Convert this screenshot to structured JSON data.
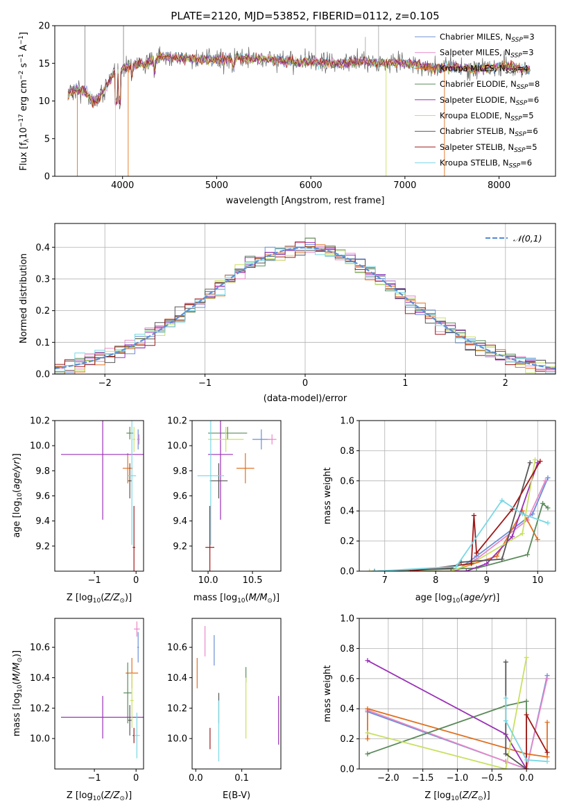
{
  "figure_title": "PLATE=2120, MJD=53852, FIBERID=0112, z=0.105",
  "colors": {
    "Chabrier MILES": "#6b8fd6",
    "Salpeter MILES": "#e888c8",
    "Kroupa MILES": "#e07020",
    "Chabrier ELODIE": "#5a8a5a",
    "Salpeter ELODIE": "#9a30b8",
    "Kroupa ELODIE": "#c8e060",
    "Chabrier STELIB": "#555555",
    "Salpeter STELIB": "#a01818",
    "Kroupa STELIB": "#78d8e4",
    "normal_curve": "#5b8fd6"
  },
  "chart_data": [
    {
      "id": "spectrum",
      "type": "line",
      "title": "PLATE=2120, MJD=53852, FIBERID=0112, z=0.105",
      "xlabel": "wavelength [Angstrom, rest frame]",
      "ylabel": "Flux [f_λ10^-17 erg cm^-2 s^-1 A^-1]",
      "xlim": [
        3280,
        8600
      ],
      "ylim": [
        0,
        20
      ],
      "xticks": [
        4000,
        5000,
        6000,
        7000,
        8000
      ],
      "yticks": [
        0,
        5,
        10,
        15,
        20
      ],
      "grid": false,
      "legend_position": "top-right",
      "legend": [
        {
          "base": "Chabrier MILES",
          "n": "3"
        },
        {
          "base": "Salpeter MILES",
          "n": "3"
        },
        {
          "base": "Kroupa MILES",
          "n": "4"
        },
        {
          "base": "Chabrier ELODIE",
          "n": "8"
        },
        {
          "base": "Salpeter ELODIE",
          "n": "6"
        },
        {
          "base": "Kroupa ELODIE",
          "n": "5"
        },
        {
          "base": "Chabrier STELIB",
          "n": "6"
        },
        {
          "base": "Salpeter STELIB",
          "n": "5"
        },
        {
          "base": "Kroupa STELIB",
          "n": "6"
        }
      ],
      "continuum": [
        [
          3420,
          11
        ],
        [
          3520,
          11.5
        ],
        [
          3600,
          11.3
        ],
        [
          3700,
          9.8
        ],
        [
          3780,
          11
        ],
        [
          3900,
          13.5
        ],
        [
          3980,
          14.2
        ],
        [
          4050,
          14.5
        ],
        [
          4150,
          15
        ],
        [
          4250,
          14.8
        ],
        [
          4400,
          15.8
        ],
        [
          4600,
          15.8
        ],
        [
          4800,
          15.5
        ],
        [
          5000,
          15.5
        ],
        [
          5200,
          15.7
        ],
        [
          5400,
          15.6
        ],
        [
          5600,
          15.5
        ],
        [
          5800,
          15.2
        ],
        [
          6000,
          15.2
        ],
        [
          6200,
          15
        ],
        [
          6400,
          15
        ],
        [
          6563,
          15.4
        ],
        [
          6700,
          15
        ],
        [
          6900,
          15.1
        ],
        [
          7100,
          14.9
        ],
        [
          7300,
          14.3
        ],
        [
          7500,
          14.6
        ],
        [
          7700,
          14.2
        ],
        [
          7900,
          14.4
        ],
        [
          8100,
          14.7
        ],
        [
          8300,
          14.1
        ]
      ]
    },
    {
      "id": "residuals",
      "type": "histogram",
      "xlabel": "(data-model)/error",
      "ylabel": "Normed distribution",
      "xlim": [
        -2.5,
        2.5
      ],
      "ylim": [
        0,
        0.475
      ],
      "xticks": [
        -2,
        -1,
        0,
        1,
        2
      ],
      "yticks": [
        0.0,
        0.1,
        0.2,
        0.3,
        0.4
      ],
      "grid": true,
      "bin_width": 0.1,
      "legend": "𝒩(0,1)",
      "legend_position": "top-right",
      "series_colors": [
        "Chabrier MILES",
        "Salpeter MILES",
        "Kroupa MILES",
        "Chabrier ELODIE",
        "Salpeter ELODIE",
        "Kroupa ELODIE",
        "Chabrier STELIB",
        "Salpeter STELIB",
        "Kroupa STELIB"
      ]
    },
    {
      "id": "age_vs_Z",
      "type": "errorbar",
      "xlabel": "Z [log10(Z/Z⊙)]",
      "ylabel": "age  [log10(age/yr)]",
      "xlim": [
        -1.95,
        0.18
      ],
      "ylim": [
        9.0,
        10.2
      ],
      "xticks": [
        -1,
        0
      ],
      "yticks": [
        9.2,
        9.4,
        9.6,
        9.8,
        10.0,
        10.2
      ],
      "points": [
        {
          "series": "Chabrier MILES",
          "x": 0.05,
          "xerr": 0.02,
          "y": 10.05,
          "yerr": 0.08
        },
        {
          "series": "Salpeter MILES",
          "x": 0.07,
          "xerr": 0.02,
          "y": 10.05,
          "yerr": 0.04
        },
        {
          "series": "Kroupa MILES",
          "x": -0.2,
          "xerr": 0.12,
          "y": 9.82,
          "yerr": 0.12
        },
        {
          "series": "Chabrier ELODIE",
          "x": -0.15,
          "xerr": 0.08,
          "y": 10.1,
          "yerr": 0.05
        },
        {
          "series": "Salpeter ELODIE",
          "x": -0.8,
          "xerr": 1.0,
          "y": 9.93,
          "yerr": 0.52
        },
        {
          "series": "Kroupa ELODIE",
          "x": -0.05,
          "xerr": 0.03,
          "y": 10.05,
          "yerr": 0.1
        },
        {
          "series": "Chabrier STELIB",
          "x": -0.15,
          "xerr": 0.04,
          "y": 9.72,
          "yerr": 0.14
        },
        {
          "series": "Salpeter STELIB",
          "x": -0.05,
          "xerr": 0.03,
          "y": 9.19,
          "yerr": 0.33
        },
        {
          "series": "Kroupa STELIB",
          "x": -0.1,
          "xerr": 0.1,
          "y": 9.76,
          "yerr": 0.55
        }
      ]
    },
    {
      "id": "age_vs_mass",
      "type": "errorbar",
      "xlabel": "mass [log10(M/M⊙)]",
      "ylabel": "",
      "xlim": [
        9.82,
        10.82
      ],
      "ylim": [
        9.0,
        10.2
      ],
      "xticks": [
        10.0,
        10.5
      ],
      "yticks": [
        9.2,
        9.4,
        9.6,
        9.8,
        10.0,
        10.2
      ],
      "points": [
        {
          "series": "Chabrier MILES",
          "x": 10.6,
          "xerr": 0.1,
          "y": 10.05,
          "yerr": 0.08
        },
        {
          "series": "Salpeter MILES",
          "x": 10.72,
          "xerr": 0.05,
          "y": 10.05,
          "yerr": 0.04
        },
        {
          "series": "Kroupa MILES",
          "x": 10.42,
          "xerr": 0.1,
          "y": 9.82,
          "yerr": 0.12
        },
        {
          "series": "Chabrier ELODIE",
          "x": 10.22,
          "xerr": 0.22,
          "y": 10.1,
          "yerr": 0.05
        },
        {
          "series": "Salpeter ELODIE",
          "x": 10.14,
          "xerr": 0.14,
          "y": 9.93,
          "yerr": 0.52
        },
        {
          "series": "Kroupa ELODIE",
          "x": 10.2,
          "xerr": 0.2,
          "y": 10.05,
          "yerr": 0.1
        },
        {
          "series": "Chabrier STELIB",
          "x": 10.12,
          "xerr": 0.1,
          "y": 9.72,
          "yerr": 0.14
        },
        {
          "series": "Salpeter STELIB",
          "x": 10.02,
          "xerr": 0.05,
          "y": 9.19,
          "yerr": 0.33
        },
        {
          "series": "Kroupa STELIB",
          "x": 10.03,
          "xerr": 0.15,
          "y": 9.76,
          "yerr": 0.55
        }
      ]
    },
    {
      "id": "weight_vs_age",
      "type": "line",
      "xlabel": "age  [log10(age/yr)]",
      "ylabel": "mass weight",
      "xlim": [
        6.5,
        10.35
      ],
      "ylim": [
        0,
        1
      ],
      "xticks": [
        7,
        8,
        9,
        10
      ],
      "yticks": [
        0.0,
        0.2,
        0.4,
        0.6,
        0.8,
        1.0
      ],
      "grid": true,
      "series": [
        {
          "name": "Chabrier MILES",
          "points": [
            [
              6.8,
              0.0
            ],
            [
              8.4,
              0.0
            ],
            [
              8.8,
              0.1
            ],
            [
              9.9,
              0.38
            ],
            [
              10.2,
              0.62
            ]
          ]
        },
        {
          "name": "Salpeter MILES",
          "points": [
            [
              6.8,
              0.0
            ],
            [
              8.4,
              0.0
            ],
            [
              8.8,
              0.08
            ],
            [
              9.8,
              0.34
            ],
            [
              10.15,
              0.6
            ]
          ]
        },
        {
          "name": "Kroupa MILES",
          "points": [
            [
              6.8,
              0.0
            ],
            [
              8.3,
              0.0
            ],
            [
              9.2,
              0.1
            ],
            [
              9.7,
              0.4
            ],
            [
              10.0,
              0.21
            ]
          ]
        },
        {
          "name": "Chabrier ELODIE",
          "points": [
            [
              6.8,
              0.0
            ],
            [
              8.8,
              0.02
            ],
            [
              9.8,
              0.11
            ],
            [
              10.1,
              0.45
            ],
            [
              10.2,
              0.42
            ]
          ]
        },
        {
          "name": "Salpeter ELODIE",
          "points": [
            [
              6.8,
              0.0
            ],
            [
              8.6,
              0.0
            ],
            [
              9.0,
              0.05
            ],
            [
              9.5,
              0.23
            ],
            [
              10.0,
              0.72
            ]
          ]
        },
        {
          "name": "Kroupa ELODIE",
          "points": [
            [
              6.7,
              0.0
            ],
            [
              8.3,
              0.0
            ],
            [
              8.7,
              0.05
            ],
            [
              9.7,
              0.25
            ],
            [
              9.95,
              0.74
            ]
          ]
        },
        {
          "name": "Chabrier STELIB",
          "points": [
            [
              6.8,
              0.0
            ],
            [
              8.3,
              0.02
            ],
            [
              8.5,
              0.06
            ],
            [
              9.3,
              0.08
            ],
            [
              9.85,
              0.72
            ]
          ]
        },
        {
          "name": "Salpeter STELIB",
          "points": [
            [
              7.5,
              0.0
            ],
            [
              8.7,
              0.05
            ],
            [
              8.75,
              0.37
            ],
            [
              8.8,
              0.12
            ],
            [
              9.5,
              0.41
            ],
            [
              10.05,
              0.73
            ]
          ]
        },
        {
          "name": "Kroupa STELIB",
          "points": [
            [
              6.8,
              0.0
            ],
            [
              8.4,
              0.03
            ],
            [
              9.3,
              0.47
            ],
            [
              9.7,
              0.38
            ],
            [
              10.2,
              0.32
            ]
          ]
        }
      ]
    },
    {
      "id": "mass_vs_Z",
      "type": "errorbar",
      "xlabel": "Z [log10(Z/Z⊙)]",
      "ylabel": "mass [log10(M/M⊙)]",
      "xlim": [
        -1.95,
        0.18
      ],
      "ylim": [
        9.8,
        10.79
      ],
      "xticks": [
        -1,
        0
      ],
      "yticks": [
        10.0,
        10.2,
        10.4,
        10.6
      ],
      "points": [
        {
          "series": "Chabrier MILES",
          "x": 0.05,
          "xerr": 0.02,
          "y": 10.6,
          "yerr": 0.1
        },
        {
          "series": "Salpeter MILES",
          "x": 0.02,
          "xerr": 0.07,
          "y": 10.72,
          "yerr": 0.05
        },
        {
          "series": "Kroupa MILES",
          "x": -0.1,
          "xerr": 0.15,
          "y": 10.43,
          "yerr": 0.1
        },
        {
          "series": "Chabrier ELODIE",
          "x": -0.2,
          "xerr": 0.1,
          "y": 10.3,
          "yerr": 0.2
        },
        {
          "series": "Salpeter ELODIE",
          "x": -0.8,
          "xerr": 1.0,
          "y": 10.14,
          "yerr": 0.14
        },
        {
          "series": "Kroupa ELODIE",
          "x": -0.1,
          "xerr": 0.04,
          "y": 10.25,
          "yerr": 0.18
        },
        {
          "series": "Chabrier STELIB",
          "x": -0.15,
          "xerr": 0.04,
          "y": 10.12,
          "yerr": 0.1
        },
        {
          "series": "Salpeter STELIB",
          "x": -0.05,
          "xerr": 0.03,
          "y": 10.02,
          "yerr": 0.05
        },
        {
          "series": "Kroupa STELIB",
          "x": 0.02,
          "xerr": 0.07,
          "y": 10.02,
          "yerr": 0.15
        }
      ]
    },
    {
      "id": "mass_vs_EBV",
      "type": "errorbar",
      "xlabel": "E(B-V)",
      "ylabel": "",
      "xlim": [
        -0.008,
        0.185
      ],
      "ylim": [
        9.8,
        10.79
      ],
      "xticks": [
        0.0,
        0.1
      ],
      "yticks": [
        10.0,
        10.2,
        10.4,
        10.6
      ],
      "points": [
        {
          "series": "Chabrier MILES",
          "x": 0.04,
          "y": 10.58,
          "yerr": 0.1
        },
        {
          "series": "Salpeter MILES",
          "x": 0.02,
          "y": 10.64,
          "yerr": 0.1
        },
        {
          "series": "Kroupa MILES",
          "x": 0.003,
          "y": 10.43,
          "yerr": 0.1
        },
        {
          "series": "Chabrier ELODIE",
          "x": 0.109,
          "y": 10.42,
          "yerr": 0.05
        },
        {
          "series": "Salpeter ELODIE",
          "x": 0.18,
          "y": 10.12,
          "yerr": 0.16
        },
        {
          "series": "Kroupa ELODIE",
          "x": 0.109,
          "y": 10.2,
          "yerr": 0.2
        },
        {
          "series": "Chabrier STELIB",
          "x": 0.05,
          "y": 10.2,
          "yerr": 0.1
        },
        {
          "series": "Salpeter STELIB",
          "x": 0.031,
          "y": 10.0,
          "yerr": 0.07
        },
        {
          "series": "Kroupa STELIB",
          "x": 0.05,
          "y": 10.05,
          "yerr": 0.2
        }
      ]
    },
    {
      "id": "weight_vs_Z",
      "type": "line",
      "xlabel": "Z [log10(Z/Z⊙)]",
      "ylabel": "mass weight",
      "xlim": [
        -2.42,
        0.42
      ],
      "ylim": [
        0,
        1
      ],
      "xticks": [
        -2.0,
        -1.5,
        -1.0,
        -0.5,
        0.0
      ],
      "yticks": [
        0.0,
        0.2,
        0.4,
        0.6,
        0.8,
        1.0
      ],
      "grid": true,
      "series": [
        {
          "name": "Chabrier MILES",
          "points": [
            [
              -2.3,
              0.38
            ],
            [
              -0.3,
              0.05
            ],
            [
              0.0,
              0.0
            ],
            [
              0.3,
              0.62
            ]
          ]
        },
        {
          "name": "Salpeter MILES",
          "points": [
            [
              -2.3,
              0.39
            ],
            [
              -0.3,
              0.05
            ],
            [
              0.0,
              0.0
            ],
            [
              0.3,
              0.6
            ]
          ]
        },
        {
          "name": "Kroupa MILES",
          "points": [
            [
              -2.3,
              0.2
            ],
            [
              -2.3,
              0.4
            ],
            [
              0.0,
              0.1
            ],
            [
              0.3,
              0.08
            ],
            [
              0.3,
              0.31
            ]
          ]
        },
        {
          "name": "Chabrier ELODIE",
          "points": [
            [
              -2.3,
              0.1
            ],
            [
              -0.3,
              0.42
            ],
            [
              0.0,
              0.45
            ],
            [
              0.0,
              0.0
            ]
          ]
        },
        {
          "name": "Salpeter ELODIE",
          "points": [
            [
              -2.3,
              0.72
            ],
            [
              -0.3,
              0.23
            ],
            [
              0.0,
              0.0
            ]
          ]
        },
        {
          "name": "Kroupa ELODIE",
          "points": [
            [
              -2.3,
              0.24
            ],
            [
              -0.3,
              0.0
            ],
            [
              0.0,
              0.74
            ]
          ]
        },
        {
          "name": "Chabrier STELIB",
          "points": [
            [
              -0.3,
              0.71
            ],
            [
              -0.3,
              0.1
            ],
            [
              0.0,
              0.0
            ]
          ]
        },
        {
          "name": "Salpeter STELIB",
          "points": [
            [
              0.0,
              0.0
            ],
            [
              0.0,
              0.36
            ],
            [
              0.3,
              0.11
            ]
          ]
        },
        {
          "name": "Kroupa STELIB",
          "points": [
            [
              -0.3,
              0.47
            ],
            [
              -0.3,
              0.32
            ],
            [
              0.0,
              0.06
            ],
            [
              0.3,
              0.05
            ]
          ]
        }
      ]
    }
  ]
}
